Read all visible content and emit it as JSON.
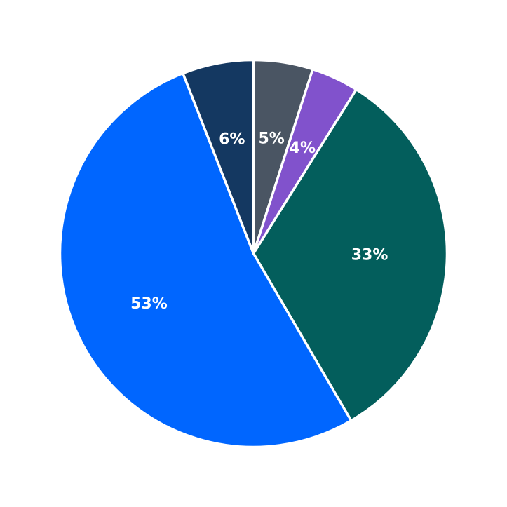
{
  "chart_data": {
    "type": "pie",
    "title": "",
    "start": "top",
    "direction": "clockwise",
    "slices": [
      {
        "label": "5%",
        "value": 5,
        "color": "#4a5563"
      },
      {
        "label": "4%",
        "value": 4,
        "color": "#8152cc"
      },
      {
        "label": "33%",
        "value": 33,
        "color": "#035e5c"
      },
      {
        "label": "53%",
        "value": 53,
        "color": "#0066ff"
      },
      {
        "label": "6%",
        "value": 6,
        "color": "#143861"
      }
    ]
  }
}
